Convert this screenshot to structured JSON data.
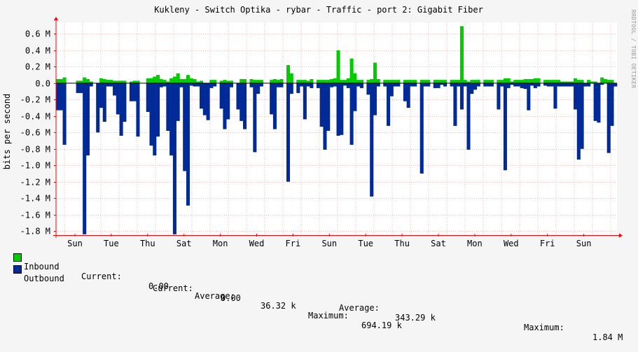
{
  "chart_data": {
    "type": "area",
    "title": "Kukleny - Switch  Optika - rybar - Traffic - port 2: Gigabit Fiber",
    "ylabel": "bits per second",
    "side_text": "RRDTOOL / TOBI OETIKER",
    "ylim": [
      -1.85,
      0.74
    ],
    "y_ticks": [
      {
        "v": 0.6,
        "label": "0.6 M"
      },
      {
        "v": 0.4,
        "label": "0.4 M"
      },
      {
        "v": 0.2,
        "label": "0.2 M"
      },
      {
        "v": 0.0,
        "label": "0.0"
      },
      {
        "v": -0.2,
        "label": "-0.2 M"
      },
      {
        "v": -0.4,
        "label": "-0.4 M"
      },
      {
        "v": -0.6,
        "label": "-0.6 M"
      },
      {
        "v": -0.8,
        "label": "-0.8 M"
      },
      {
        "v": -1.0,
        "label": "-1.0 M"
      },
      {
        "v": -1.2,
        "label": "-1.2 M"
      },
      {
        "v": -1.4,
        "label": "-1.4 M"
      },
      {
        "v": -1.6,
        "label": "-1.6 M"
      },
      {
        "v": -1.8,
        "label": "-1.8 M"
      }
    ],
    "x_labels": [
      "Sun",
      "Tue",
      "Thu",
      "Sat",
      "Mon",
      "Wed",
      "Fri",
      "Sun",
      "Tue",
      "Thu",
      "Sat",
      "Mon",
      "Wed",
      "Fri",
      "Sun"
    ],
    "series": [
      {
        "name": "Inbound",
        "color": "#00cc00",
        "values": [
          0.05,
          0.05,
          0.07,
          0,
          0,
          0,
          0.03,
          0.03,
          0.07,
          0.05,
          0.02,
          0,
          0,
          0.06,
          0.05,
          0.04,
          0.04,
          0.03,
          0.03,
          0.03,
          0.03,
          0,
          0.02,
          0.03,
          0.03,
          0,
          0,
          0.06,
          0.06,
          0.08,
          0.1,
          0.05,
          0.04,
          0.02,
          0.06,
          0.08,
          0.12,
          0.05,
          0.05,
          0.1,
          0.06,
          0.05,
          0.02,
          0.03,
          0,
          0,
          0.04,
          0.04,
          0,
          0.03,
          0.04,
          0.03,
          0.03,
          0,
          0,
          0.05,
          0.05,
          0,
          0.05,
          0.04,
          0.04,
          0.04,
          0,
          0,
          0.04,
          0.05,
          0.04,
          0.05,
          0,
          0.22,
          0.12,
          0,
          0.04,
          0.04,
          0.04,
          0.03,
          0.05,
          0,
          0.04,
          0.04,
          0.04,
          0.04,
          0.05,
          0.06,
          0.4,
          0.04,
          0.04,
          0.06,
          0.3,
          0.12,
          0.04,
          0.04,
          0,
          0.04,
          0.05,
          0.25,
          0.05,
          0,
          0.04,
          0.04,
          0.04,
          0.04,
          0.04,
          0,
          0.04,
          0.04,
          0.04,
          0.04,
          0,
          0.04,
          0.04,
          0.04,
          0,
          0.04,
          0.04,
          0.04,
          0.04,
          0,
          0.04,
          0.04,
          0.04,
          0.694,
          0.04,
          0.02,
          0.04,
          0.04,
          0.04,
          0,
          0.04,
          0.04,
          0.04,
          0,
          0.04,
          0.04,
          0.06,
          0.06,
          0.02,
          0.04,
          0.04,
          0.04,
          0.05,
          0.05,
          0.05,
          0.06,
          0.06,
          0,
          0.04,
          0.04,
          0.04,
          0.04,
          0.04,
          0.02,
          0.02,
          0.02,
          0.02,
          0.06,
          0.04,
          0.04,
          0,
          0.04,
          0.02,
          0.02,
          0,
          0.07,
          0.05,
          0.04,
          0.04,
          0
        ]
      },
      {
        "name": "Outbound",
        "color": "#002a97",
        "values": [
          0.33,
          0.33,
          0.75,
          0,
          0,
          0,
          0.12,
          0.12,
          1.84,
          0.88,
          0.04,
          0,
          0.6,
          0.3,
          0.47,
          0.04,
          0.04,
          0.15,
          0.38,
          0.64,
          0.47,
          0,
          0.22,
          0.22,
          0.65,
          0,
          0,
          0.35,
          0.76,
          0.88,
          0.65,
          0.05,
          0.04,
          0.58,
          0.88,
          1.84,
          0.46,
          0.05,
          1.07,
          1.49,
          0.03,
          0.04,
          0.04,
          0.31,
          0.39,
          0.45,
          0.06,
          0.04,
          0,
          0.31,
          0.56,
          0.44,
          0.05,
          0,
          0.32,
          0.46,
          0.56,
          0,
          0.05,
          0.84,
          0.13,
          0.04,
          0,
          0,
          0.38,
          0.56,
          0.05,
          0.05,
          0,
          1.2,
          0.13,
          0,
          0.12,
          0.04,
          0.44,
          0.04,
          0.06,
          0,
          0.06,
          0.53,
          0.81,
          0.58,
          0.05,
          0.04,
          0.64,
          0.63,
          0.03,
          0.06,
          0.75,
          0.34,
          0.04,
          0.06,
          0,
          0.14,
          1.38,
          0.39,
          0.04,
          0,
          0.04,
          0.52,
          0.16,
          0.04,
          0.04,
          0,
          0.22,
          0.3,
          0.04,
          0.04,
          0,
          1.1,
          0.04,
          0.04,
          0,
          0.06,
          0.06,
          0.02,
          0.04,
          0,
          0.04,
          0.52,
          0.04,
          0.32,
          0.04,
          0.81,
          0.13,
          0.08,
          0.04,
          0,
          0.04,
          0.04,
          0.04,
          0,
          0.32,
          0.04,
          1.06,
          0.06,
          0.02,
          0.04,
          0.04,
          0.06,
          0.07,
          0.33,
          0.03,
          0.06,
          0.04,
          0,
          0.03,
          0.04,
          0.04,
          0.31,
          0.04,
          0.04,
          0.04,
          0.04,
          0.04,
          0.32,
          0.93,
          0.8,
          0.04,
          0.04,
          0,
          0.46,
          0.48,
          0.02,
          0,
          0.85,
          0.52,
          0.04,
          0.3,
          0
        ]
      }
    ]
  },
  "legend": {
    "inbound": {
      "label": "Inbound",
      "current_label": "Current:",
      "current": "0.00",
      "average_label": "Average:",
      "average": "36.32 k",
      "maximum_label": "Maximum:",
      "maximum": "694.19 k"
    },
    "outbound": {
      "label": "Outbound",
      "current_label": "Current:",
      "current": "0.00",
      "average_label": "Average:",
      "average": "343.29 k",
      "maximum_label": "Maximum:",
      "maximum": "1.84 M"
    }
  }
}
